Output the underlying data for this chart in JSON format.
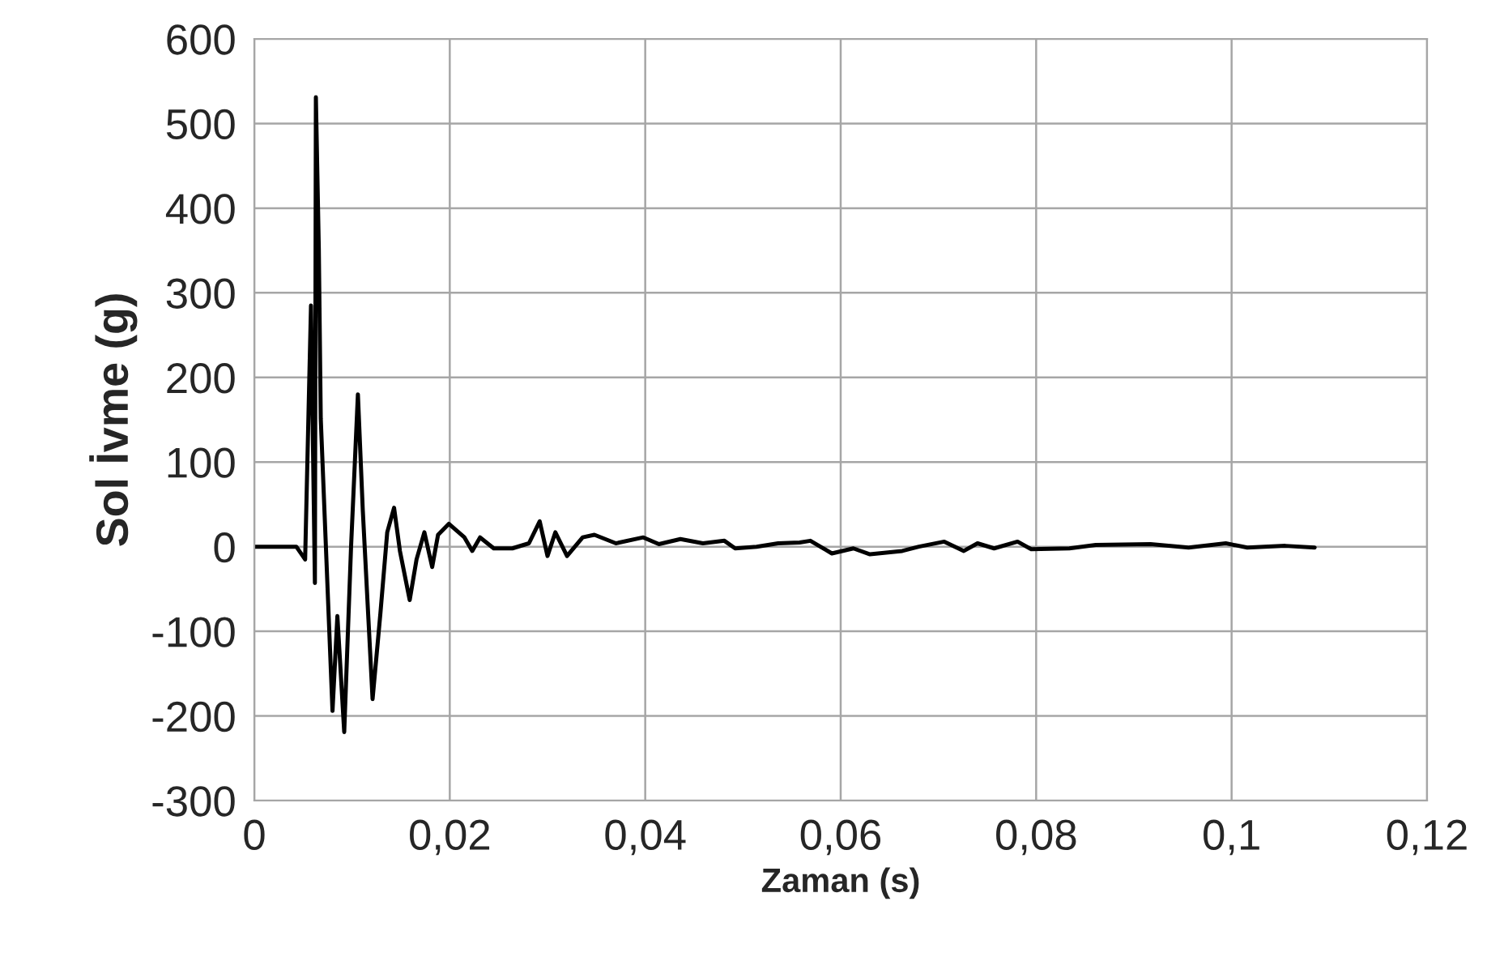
{
  "chart_data": {
    "type": "line",
    "xlabel": "Zaman (s)",
    "ylabel": "Sol İvme (g)",
    "xlim": [
      0,
      0.12
    ],
    "ylim": [
      -300,
      600
    ],
    "xticks": [
      0,
      {
        "value": 0.02,
        "label": "0,02"
      },
      {
        "value": 0.04,
        "label": "0,04"
      },
      {
        "value": 0.06,
        "label": "0,06"
      },
      {
        "value": 0.08,
        "label": "0,08"
      },
      {
        "value": 0.1,
        "label": "0,1"
      },
      {
        "value": 0.12,
        "label": "0,12"
      }
    ],
    "yticks": [
      -300,
      -200,
      -100,
      0,
      100,
      200,
      300,
      400,
      500,
      600
    ],
    "grid": true,
    "marker": "none",
    "line_style": "solid",
    "series": [
      {
        "color": "#000000",
        "x": [
          0,
          0.0043,
          0.0052,
          0.0058,
          0.0062,
          0.0063,
          0.0066,
          0.0068,
          0.008,
          0.0085,
          0.0092,
          0.0099,
          0.0106,
          0.0111,
          0.0121,
          0.0129,
          0.0136,
          0.0143,
          0.0149,
          0.0159,
          0.0166,
          0.0174,
          0.0182,
          0.0188,
          0.0199,
          0.0215,
          0.0223,
          0.0231,
          0.0245,
          0.0264,
          0.0281,
          0.0292,
          0.03,
          0.0308,
          0.032,
          0.0336,
          0.0348,
          0.037,
          0.0398,
          0.0414,
          0.0436,
          0.0459,
          0.0481,
          0.0492,
          0.0514,
          0.0536,
          0.0558,
          0.0569,
          0.0591,
          0.0613,
          0.063,
          0.0663,
          0.068,
          0.0706,
          0.0726,
          0.074,
          0.0757,
          0.0781,
          0.0795,
          0.0834,
          0.0861,
          0.0917,
          0.0956,
          0.0994,
          0.1016,
          0.1055,
          0.1085
        ],
        "values": [
          0,
          0,
          -15,
          285,
          -43,
          531,
          352,
          151,
          -194,
          -82,
          -219,
          0,
          180,
          43,
          -180,
          -79,
          17,
          46,
          -5,
          -63,
          -15,
          17,
          -24,
          14,
          27,
          11,
          -5,
          11,
          -2,
          -2,
          4,
          30,
          -11,
          17,
          -11,
          11,
          14,
          4,
          11,
          3,
          9,
          4,
          7,
          -2,
          0,
          4,
          5,
          7,
          -8,
          -2,
          -9,
          -5,
          0,
          6,
          -5,
          4,
          -2,
          6,
          -3,
          -2,
          2,
          3,
          -1,
          4,
          -1,
          1,
          -1
        ]
      }
    ]
  }
}
